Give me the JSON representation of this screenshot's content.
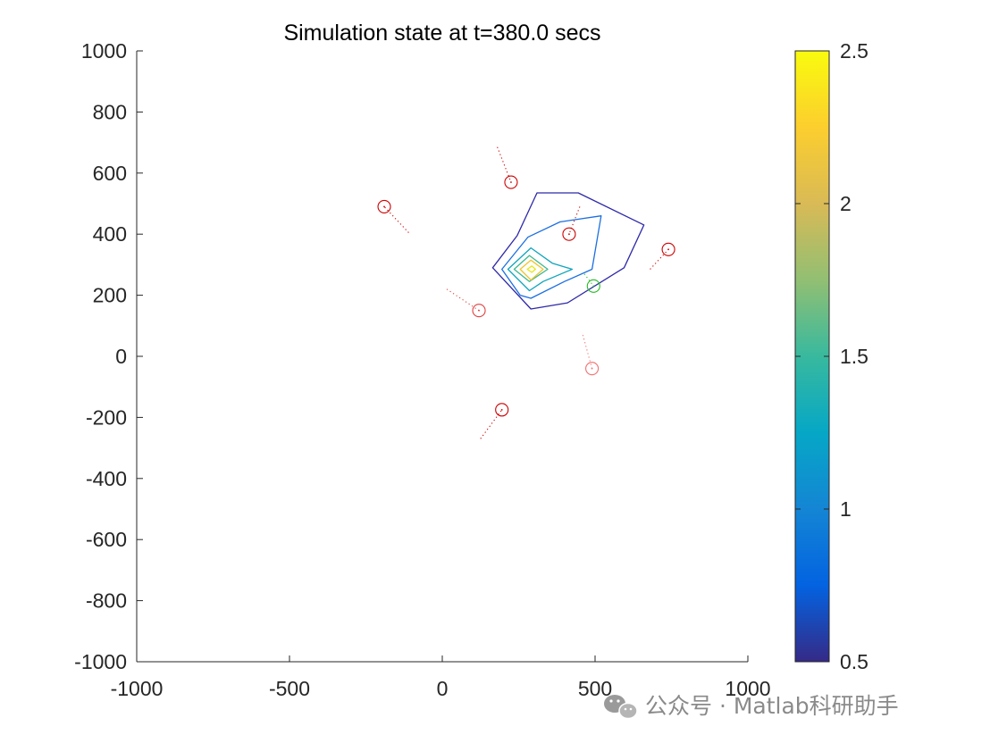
{
  "chart_data": {
    "type": "contour",
    "title": "Simulation state at t=380.0 secs",
    "xlabel": "",
    "ylabel": "",
    "xlim": [
      -1000,
      1000
    ],
    "ylim": [
      -1000,
      1000
    ],
    "xticks": [
      -1000,
      -500,
      0,
      500,
      1000
    ],
    "xtick_labels": [
      "-1000",
      "-500",
      "0",
      "500",
      "1000"
    ],
    "yticks": [
      1000,
      800,
      600,
      400,
      200,
      0,
      -200,
      -400,
      -600,
      -800,
      -1000
    ],
    "ytick_labels": [
      "1000",
      "800",
      "600",
      "400",
      "200",
      "0",
      "-200",
      "-400",
      "-600",
      "-800",
      "-1000"
    ],
    "grid": false,
    "colorbar": {
      "limits": [
        0.5,
        2.5
      ],
      "ticks": [
        2.5,
        2,
        1.5,
        1,
        0.5
      ],
      "tick_labels": [
        "2.5",
        "2",
        "1.5",
        "1",
        "0.5"
      ],
      "colormap": "parula",
      "colormap_stops": [
        "#352a87",
        "#0363e1",
        "#1485d4",
        "#06a7c6",
        "#38b99e",
        "#92bf73",
        "#d9ba56",
        "#fcce2e",
        "#f9fb0e"
      ]
    },
    "contours": [
      {
        "level": 0.7,
        "color": "#2e29a8",
        "points": [
          [
            165,
            290
          ],
          [
            245,
            395
          ],
          [
            310,
            535
          ],
          [
            445,
            535
          ],
          [
            660,
            430
          ],
          [
            595,
            290
          ],
          [
            410,
            175
          ],
          [
            290,
            155
          ]
        ]
      },
      {
        "level": 1.1,
        "color": "#1b6fe0",
        "points": [
          [
            195,
            285
          ],
          [
            280,
            390
          ],
          [
            385,
            440
          ],
          [
            520,
            460
          ],
          [
            490,
            285
          ],
          [
            400,
            245
          ],
          [
            290,
            190
          ],
          [
            255,
            200
          ]
        ]
      },
      {
        "level": 1.4,
        "color": "#0fa5bd",
        "points": [
          [
            215,
            285
          ],
          [
            290,
            355
          ],
          [
            360,
            305
          ],
          [
            425,
            285
          ],
          [
            330,
            245
          ],
          [
            285,
            215
          ]
        ]
      },
      {
        "level": 1.8,
        "color": "#3db88f",
        "points": [
          [
            235,
            285
          ],
          [
            285,
            330
          ],
          [
            345,
            285
          ],
          [
            285,
            245
          ]
        ]
      },
      {
        "level": 2.2,
        "color": "#f0c42c",
        "points": [
          [
            255,
            285
          ],
          [
            290,
            315
          ],
          [
            330,
            285
          ],
          [
            290,
            250
          ]
        ]
      },
      {
        "level": 2.4,
        "color": "#e8e810",
        "points": [
          [
            278,
            285
          ],
          [
            293,
            296
          ],
          [
            305,
            285
          ],
          [
            293,
            275
          ]
        ]
      }
    ],
    "agents": [
      {
        "x": 225,
        "y": 570,
        "color": "#cc0000",
        "trail": [
          [
            180,
            685
          ],
          [
            225,
            570
          ]
        ]
      },
      {
        "x": -190,
        "y": 490,
        "color": "#cc0000",
        "trail": [
          [
            -110,
            405
          ],
          [
            -190,
            490
          ]
        ]
      },
      {
        "x": 415,
        "y": 400,
        "color": "#cc0000",
        "trail": [
          [
            450,
            490
          ],
          [
            415,
            400
          ]
        ]
      },
      {
        "x": 740,
        "y": 350,
        "color": "#cc0000",
        "trail": [
          [
            680,
            285
          ],
          [
            740,
            350
          ]
        ]
      },
      {
        "x": 495,
        "y": 230,
        "color": "#22bb22",
        "trail": [
          [
            465,
            270
          ],
          [
            495,
            230
          ]
        ]
      },
      {
        "x": 120,
        "y": 150,
        "color": "#e04040",
        "trail": [
          [
            15,
            220
          ],
          [
            120,
            150
          ]
        ]
      },
      {
        "x": 490,
        "y": -40,
        "color": "#f07070",
        "trail": [
          [
            460,
            70
          ],
          [
            490,
            -40
          ]
        ]
      },
      {
        "x": 195,
        "y": -175,
        "color": "#cc0000",
        "trail": [
          [
            125,
            -270
          ],
          [
            195,
            -175
          ]
        ]
      }
    ]
  },
  "watermark": {
    "text": "公众号 · Matlab科研助手",
    "icon": "wechat-icon"
  }
}
